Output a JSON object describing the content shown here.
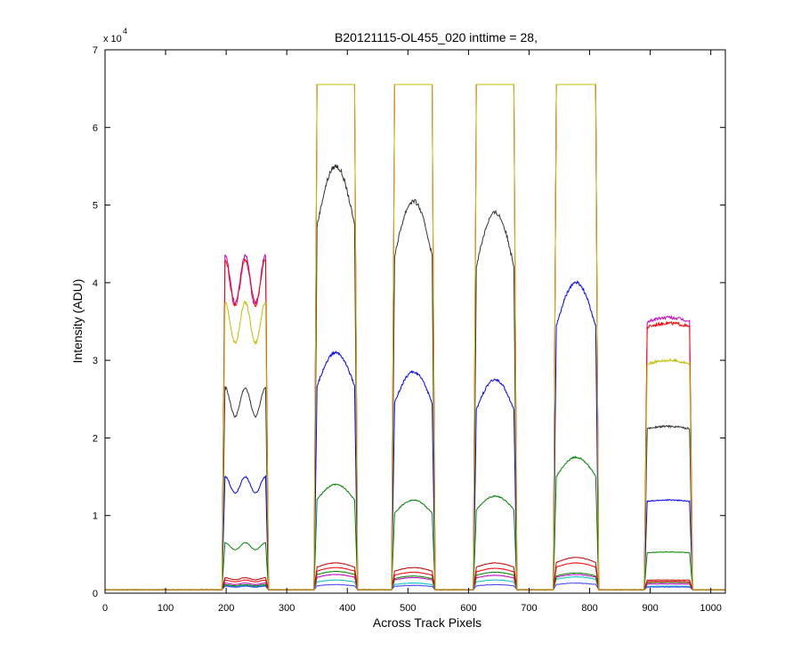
{
  "chart_data": {
    "type": "line",
    "title": "B20121115-OL455_020 inttime = 28,",
    "xlabel": "Across Track Pixels",
    "ylabel": "Intensity (ADU)",
    "y_multiplier_label": "x 10",
    "y_multiplier_exponent": "4",
    "xlim": [
      0,
      1024
    ],
    "ylim": [
      0,
      70000
    ],
    "x_ticks": [
      0,
      100,
      200,
      300,
      400,
      500,
      600,
      700,
      800,
      900,
      1000
    ],
    "y_ticks": [
      0,
      10000,
      20000,
      30000,
      40000,
      50000,
      60000,
      70000
    ],
    "y_tick_labels": [
      "0",
      "1",
      "2",
      "3",
      "4",
      "5",
      "6",
      "7"
    ],
    "grid": false,
    "baseline": 450,
    "saturation": 65535,
    "bands": [
      {
        "start": 198,
        "end": 265
      },
      {
        "start": 350,
        "end": 412
      },
      {
        "start": 478,
        "end": 540
      },
      {
        "start": 613,
        "end": 675
      },
      {
        "start": 745,
        "end": 810
      },
      {
        "start": 895,
        "end": 965
      }
    ],
    "series": [
      {
        "color": "#00bfbf",
        "levels": [
          1000,
          1700,
          1300,
          1700,
          2100,
          900
        ]
      },
      {
        "color": "#4040ff",
        "levels": [
          900,
          1100,
          1000,
          1100,
          1300,
          800
        ]
      },
      {
        "color": "#bf00bf",
        "levels": [
          1300,
          2400,
          2000,
          2300,
          2400,
          1200
        ]
      },
      {
        "color": "#008000",
        "levels": [
          1100,
          2800,
          2200,
          2700,
          2600,
          1400
        ]
      },
      {
        "color": "#ff0000",
        "levels": [
          1700,
          3300,
          2700,
          3200,
          3900,
          1500
        ]
      },
      {
        "color": "#bf0000",
        "levels": [
          2000,
          3900,
          3300,
          3900,
          4600,
          1700
        ]
      },
      {
        "color": "#008000",
        "levels": [
          6500,
          14000,
          12000,
          12500,
          17500,
          5300
        ]
      },
      {
        "color": "#0000ff",
        "levels": [
          15000,
          31000,
          28500,
          27500,
          40000,
          12000
        ]
      },
      {
        "color": "#333333",
        "levels": [
          26500,
          55000,
          50500,
          49000,
          65535,
          21500
        ]
      },
      {
        "color": "#bf00bf",
        "levels": [
          43500,
          65535,
          65535,
          65535,
          65535,
          35500
        ]
      },
      {
        "color": "#ff0000",
        "levels": [
          43000,
          65535,
          65535,
          65535,
          65535,
          34800
        ]
      },
      {
        "color": "#bfbf00",
        "levels": [
          37500,
          65535,
          65535,
          65535,
          65535,
          30000
        ]
      }
    ]
  }
}
